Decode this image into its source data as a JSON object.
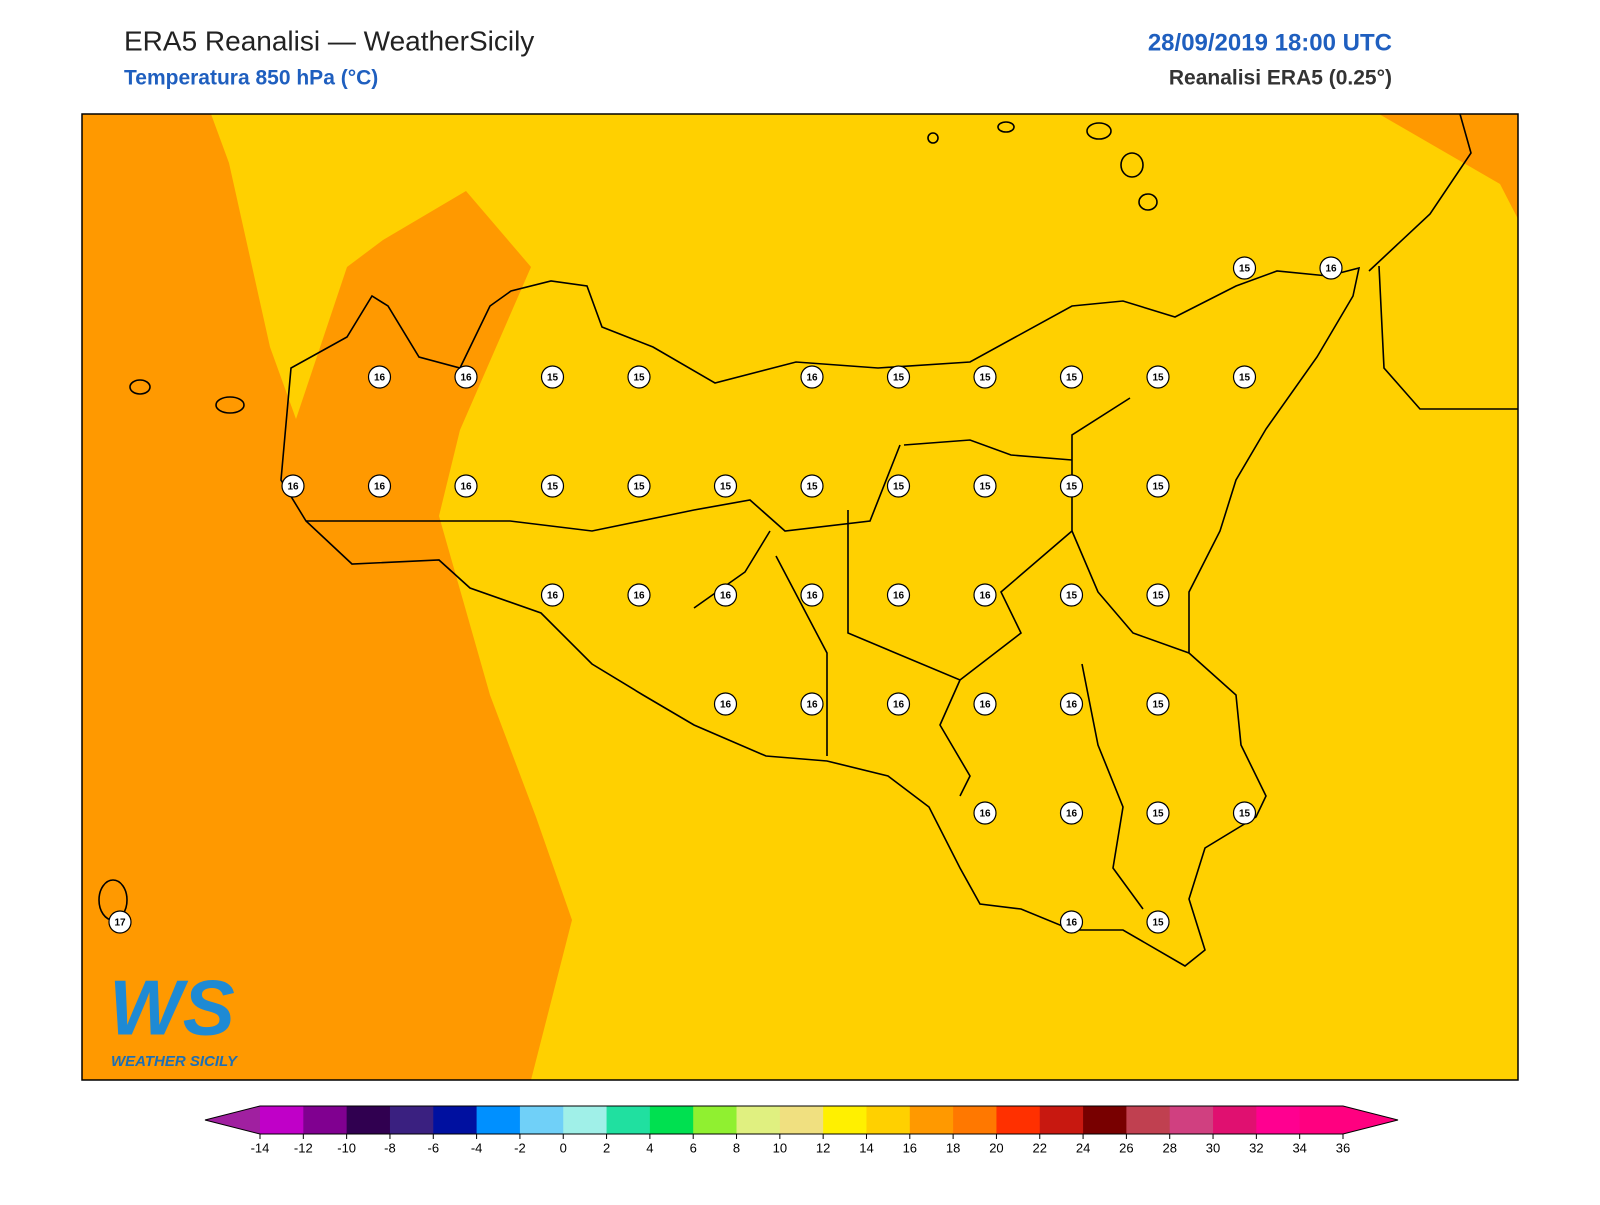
{
  "header": {
    "title": "ERA5 Reanalisi — WeatherSicily",
    "subtitle": "Temperatura 850 hPa (°C)",
    "date": "28/09/2019 18:00 UTC",
    "source": "Reanalisi ERA5 (0.25°)"
  },
  "grid": {
    "rows": [
      [
        null,
        null,
        null,
        null,
        null,
        null,
        null,
        null,
        null,
        null,
        null,
        null,
        null,
        15,
        16
      ],
      [
        null,
        null,
        null,
        16,
        16,
        15,
        15,
        null,
        16,
        15,
        15,
        15,
        15,
        15,
        null
      ],
      [
        null,
        null,
        16,
        16,
        16,
        15,
        15,
        15,
        15,
        15,
        15,
        15,
        15,
        null,
        null
      ],
      [
        null,
        null,
        null,
        null,
        null,
        16,
        16,
        16,
        16,
        16,
        16,
        15,
        15,
        null,
        null
      ],
      [
        null,
        null,
        null,
        null,
        null,
        null,
        null,
        16,
        16,
        16,
        16,
        16,
        15,
        null,
        null
      ],
      [
        null,
        null,
        null,
        null,
        null,
        null,
        null,
        null,
        null,
        null,
        16,
        16,
        15,
        15,
        null
      ],
      [
        17,
        null,
        null,
        null,
        null,
        null,
        null,
        null,
        null,
        null,
        null,
        16,
        15,
        null,
        null
      ]
    ]
  },
  "colorbar": {
    "ticks": [
      -14,
      -12,
      -10,
      -8,
      -6,
      -4,
      -2,
      0,
      2,
      4,
      6,
      8,
      10,
      12,
      14,
      16,
      18,
      20,
      22,
      24,
      26,
      28,
      30,
      32,
      34,
      36
    ],
    "colors": [
      "#a020a0",
      "#c000c8",
      "#800090",
      "#300050",
      "#3a2080",
      "#0010a0",
      "#0090ff",
      "#70d0f8",
      "#a0f0e8",
      "#20e0a0",
      "#00e050",
      "#90f030",
      "#e0f080",
      "#f0e080",
      "#fff000",
      "#ffd000",
      "#ff9900",
      "#ff7800",
      "#ff3000",
      "#c81810",
      "#780000",
      "#c04050",
      "#d04080",
      "#e01070",
      "#ff0090",
      "#ff0080",
      "#ff0080"
    ]
  },
  "logo": {
    "mark": "WS",
    "name": "WEATHER SICILY"
  }
}
